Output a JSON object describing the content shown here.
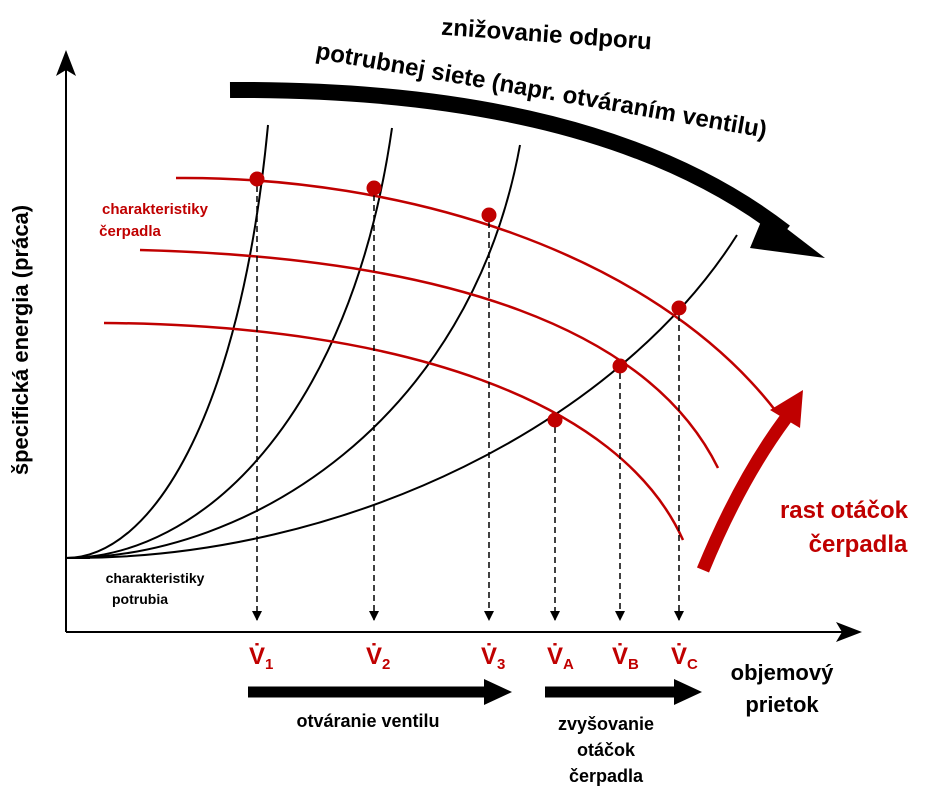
{
  "y_axis_label": "špecifická energia (práca)",
  "x_axis_label": [
    "objemový",
    "prietok"
  ],
  "top_arrow_label": [
    "znižovanie odporu",
    "potrubnej siete (napr. otváraním ventilu)"
  ],
  "pump_curves_label": [
    "charakteristiky",
    "čerpadla"
  ],
  "pipe_curves_label": [
    "charakteristiky",
    "potrubia"
  ],
  "speed_arrow_label": [
    "rast otáčok",
    "čerpadla"
  ],
  "points": [
    {
      "symbol": "V̇",
      "subscript": "1"
    },
    {
      "symbol": "V̇",
      "subscript": "2"
    },
    {
      "symbol": "V̇",
      "subscript": "3"
    },
    {
      "symbol": "V̇",
      "subscript": "A"
    },
    {
      "symbol": "V̇",
      "subscript": "B"
    },
    {
      "symbol": "V̇",
      "subscript": "C"
    }
  ],
  "valve_arrow_label": [
    "otváranie ventilu"
  ],
  "speed_bottom_label": [
    "zvyšovanie",
    "otáčok",
    "čerpadla"
  ]
}
